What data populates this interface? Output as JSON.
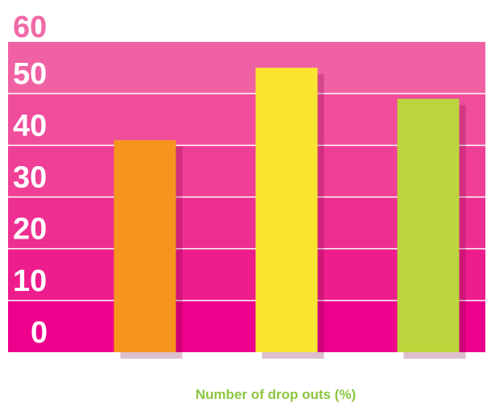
{
  "chart_data": {
    "type": "bar",
    "categories": [
      "",
      "",
      ""
    ],
    "values": [
      41,
      55,
      49
    ],
    "bar_colors": [
      "#f7941d",
      "#f9e530",
      "#bcd53c"
    ],
    "title": "",
    "xlabel": "Number of drop outs (%)",
    "ylabel": "",
    "ylim": [
      0,
      60
    ],
    "yticks": [
      "0",
      "10",
      "20",
      "30",
      "40",
      "50",
      "60"
    ],
    "grid": true,
    "band_colors": [
      "#ec008c",
      "#ee1d8e",
      "#ee2f92",
      "#ef3f97",
      "#f04d9c",
      "#f061a3"
    ],
    "tick_label_colors": {
      "top": "#f06aa6",
      "other": "#ffffff"
    },
    "xlabel_color": "#8cc63f"
  }
}
